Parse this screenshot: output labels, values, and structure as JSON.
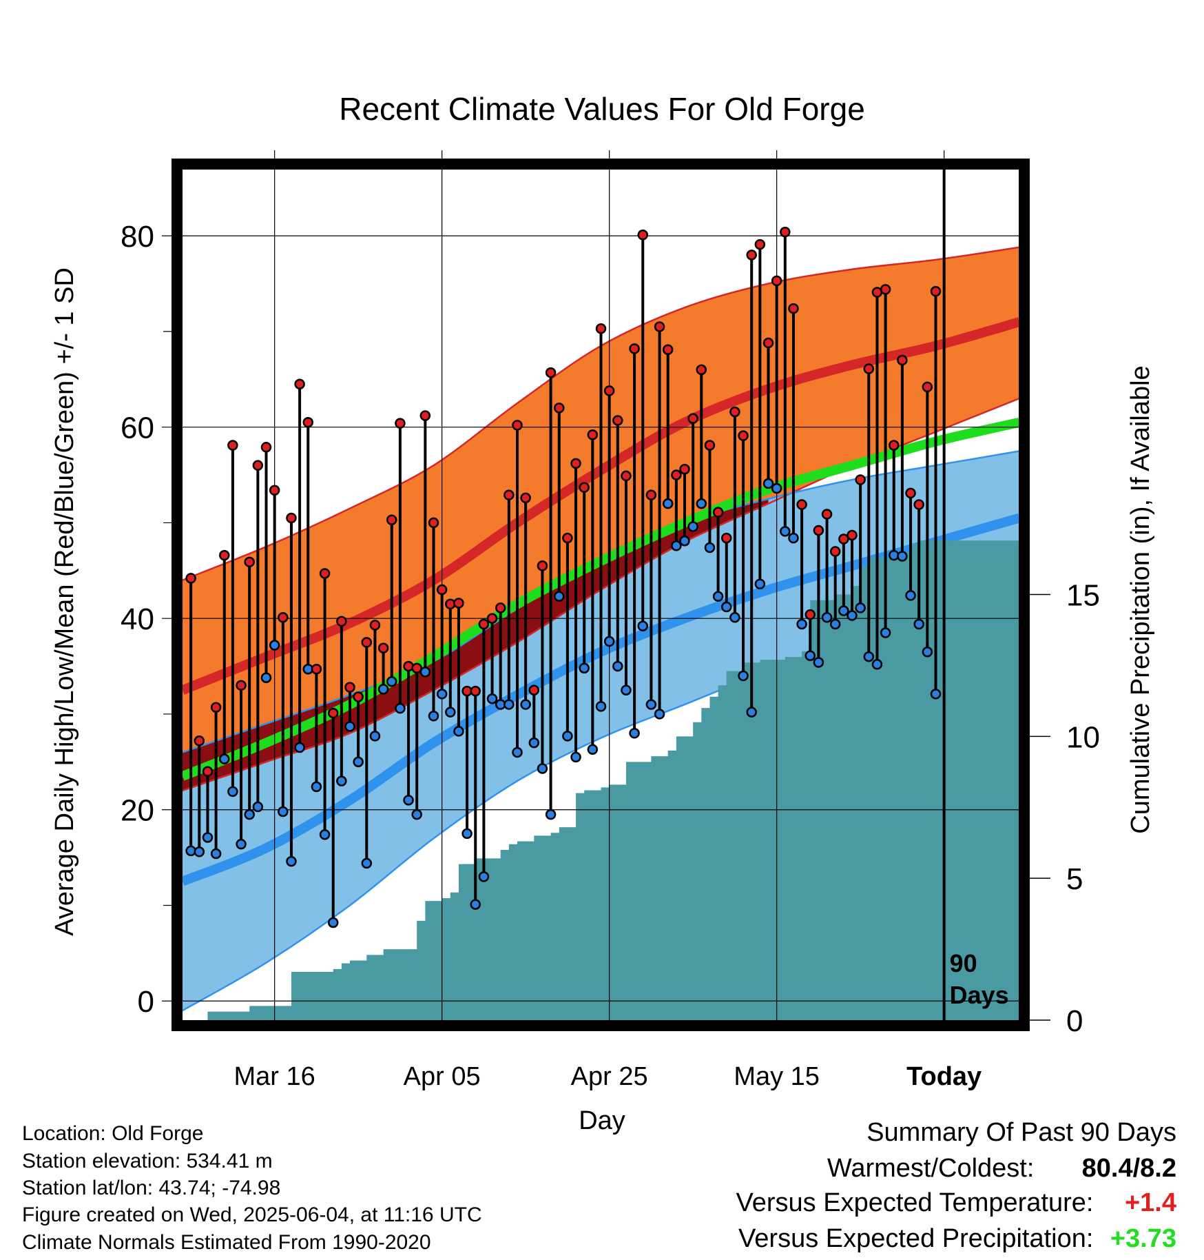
{
  "chart_data": {
    "type": "line",
    "title": "Recent Climate Values For Old Forge",
    "xlabel": "Day",
    "ylabel": "Average Daily High/Low/Mean (Red/Blue/Green) +/- 1 SD",
    "ylabel_right": "Cumulative Precipitation (in), If Available",
    "x_ticks": [
      "Mar 16",
      "Apr 05",
      "Apr 25",
      "May 15",
      "Today"
    ],
    "x_tick_days": [
      11,
      31,
      51,
      71,
      91
    ],
    "x_range": [
      0,
      100
    ],
    "ylim": [
      -2,
      87
    ],
    "y_ticks": [
      0,
      20,
      40,
      60,
      80
    ],
    "y2lim": [
      0,
      30
    ],
    "y2_ticks": [
      0,
      5,
      10,
      15
    ],
    "today_day": 91,
    "today_label": [
      "90",
      "Days"
    ],
    "grid": true,
    "normals": {
      "days": [
        0,
        10,
        20,
        30,
        40,
        50,
        60,
        70,
        80,
        90,
        100
      ],
      "high_mean": [
        32.5,
        36,
        39.5,
        44,
        50,
        55.5,
        60.5,
        64,
        66.5,
        68.5,
        71
      ],
      "high_upper": [
        44,
        47.5,
        51.5,
        56,
        62.5,
        68.5,
        72.5,
        75,
        76.5,
        77.5,
        78.8
      ],
      "high_lower": [
        22,
        25,
        28,
        32.5,
        37.5,
        43,
        48,
        52,
        56,
        59.5,
        63
      ],
      "low_mean": [
        12.5,
        16,
        21,
        27,
        32,
        36.5,
        40,
        43,
        45.5,
        48,
        50.5
      ],
      "low_upper": [
        26,
        29,
        32,
        35.5,
        41,
        46,
        50,
        52.5,
        54.5,
        56,
        57.5
      ],
      "low_lower": [
        -1,
        4,
        10,
        17,
        23,
        27.5,
        31,
        34.5,
        37.5,
        40.5,
        43.5
      ],
      "mean": [
        23.5,
        27,
        31,
        36,
        41.5,
        46,
        50,
        53.5,
        56,
        58.5,
        60.5
      ]
    },
    "series": [
      {
        "name": "High",
        "values": [
          44.2,
          27.2,
          24,
          30.7,
          46.6,
          58.1,
          33,
          45.9,
          56,
          57.9,
          53.4,
          40.1,
          50.5,
          64.5,
          60.5,
          34.7,
          44.7,
          30.1,
          39.7,
          32.8,
          31.8,
          37.5,
          39.3,
          36.9,
          50.3,
          60.4,
          35,
          34.8,
          61.2,
          50,
          43,
          41.5,
          41.6,
          32.4,
          32.4,
          39.4,
          40,
          41.1,
          52.9,
          60.2,
          52.6,
          32.5,
          45.5,
          65.7,
          62,
          48.4,
          56.2,
          53.7,
          59.2,
          70.3,
          63.8,
          60.7,
          54.9,
          68.2,
          80.1,
          52.9,
          70.5,
          68.1,
          55,
          55.6,
          60.9,
          66,
          58.1,
          51.1,
          48.4,
          61.6,
          59.1,
          78,
          79.1,
          68.8,
          75.3,
          80.4,
          72.4,
          51.9,
          40.4,
          49.2,
          50.9,
          47,
          48.3,
          48.7,
          54.5,
          66.1,
          74.1,
          74.4,
          58.1,
          67,
          53.1,
          51.9,
          64.2,
          74.2
        ]
      },
      {
        "name": "Low",
        "values": [
          15.7,
          15.6,
          17.1,
          15.4,
          25.3,
          21.9,
          16.4,
          19.5,
          20.3,
          33.8,
          37.2,
          19.8,
          14.6,
          26.5,
          34.7,
          22.4,
          17.4,
          8.2,
          23,
          28.7,
          25,
          14.4,
          27.7,
          32.6,
          33.4,
          30.6,
          21,
          19.5,
          34.4,
          29.8,
          32.1,
          30.2,
          28.2,
          17.5,
          10.1,
          13,
          31.6,
          31,
          31,
          26,
          31,
          27,
          24.3,
          19.5,
          42.3,
          27.7,
          25.5,
          34.8,
          26.3,
          30.8,
          37.6,
          35,
          32.5,
          28,
          39.2,
          31,
          30,
          52,
          47.6,
          48.1,
          49.6,
          52,
          47.4,
          42.3,
          41.2,
          40.1,
          34,
          30.2,
          43.6,
          54.1,
          53.6,
          49.1,
          48.4,
          39.4,
          36.1,
          35.4,
          40.1,
          39.4,
          40.8,
          40.3,
          41.1,
          36,
          35.2,
          38.5,
          46.6,
          46.5,
          42.4,
          39.4,
          36.5,
          32.1
        ]
      },
      {
        "name": "Cumulative Precipitation",
        "days": [
          1,
          3,
          8,
          9,
          11,
          12,
          13,
          18,
          19,
          20,
          22,
          24,
          25,
          28,
          29,
          31,
          32,
          33,
          35,
          38,
          39,
          40,
          42,
          44,
          45,
          47,
          48,
          50,
          51,
          53,
          56,
          58,
          59,
          61,
          62,
          63,
          64,
          65,
          67,
          69,
          71,
          72,
          74,
          75,
          77,
          78,
          80,
          81,
          82,
          85,
          86,
          87,
          88,
          90,
          91,
          100
        ],
        "values": [
          0,
          0.3,
          0.5,
          0.5,
          0.5,
          0.5,
          1.7,
          1.8,
          2.0,
          2.1,
          2.3,
          2.5,
          2.5,
          3.5,
          4.2,
          4.3,
          4.5,
          5.5,
          5.7,
          6.0,
          6.2,
          6.3,
          6.5,
          6.6,
          6.8,
          8.0,
          8.1,
          8.2,
          8.3,
          9.1,
          9.3,
          9.5,
          10.0,
          10.5,
          11.0,
          11.4,
          11.8,
          12.3,
          12.6,
          12.7,
          12.7,
          12.8,
          13.0,
          14.8,
          14.8,
          15.0,
          15.3,
          16.0,
          16.3,
          16.4,
          16.5,
          16.8,
          16.9,
          16.9,
          16.9,
          16.9
        ]
      }
    ]
  },
  "info": {
    "location": "Location: Old Forge",
    "elevation": "Station elevation: 534.41 m",
    "latlon": "Station lat/lon: 43.74; -74.98",
    "created": "Figure created on Wed, 2025-06-04, at 11:16 UTC",
    "normals": "Climate Normals Estimated From 1990-2020"
  },
  "summary": {
    "title": "Summary Of Past 90 Days",
    "warmest_label": "Warmest/Coldest:",
    "warmest_value": "80.4/8.2",
    "temp_label": "Versus Expected Temperature:",
    "temp_value": "+1.4",
    "precip_label": "Versus Expected Precipitation:",
    "precip_value": "+3.73"
  },
  "colors": {
    "high_band": "#f47a2c",
    "high_line": "#d62728",
    "low_band": "#82c0e8",
    "low_line": "#2f93ee",
    "mean_line": "#1ddd1d",
    "overlap": "#8b0f12",
    "precip": "#4a9aa4",
    "high_marker": "#e02020",
    "low_marker": "#2a7fe0",
    "temp_positive": "#e02020",
    "precip_positive": "#22dd22"
  }
}
